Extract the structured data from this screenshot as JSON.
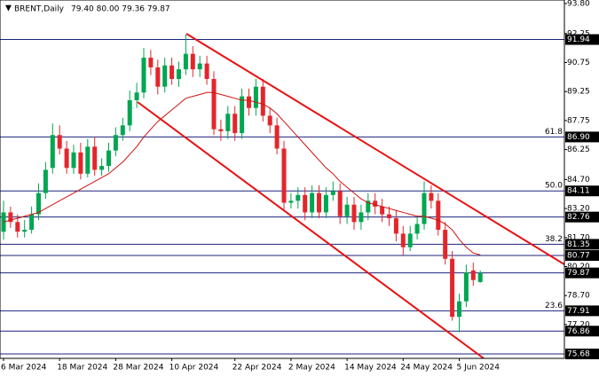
{
  "chart_data": {
    "type": "candlestick",
    "title": "BRENT,Daily",
    "subtitle": "79.40 80.00 79.36 79.87",
    "up_color": "#00a651",
    "down_color": "#e3262c",
    "ma_color": "#d01010",
    "level_color": "#1a237e",
    "categories": [
      "6 Mar 2024",
      null,
      null,
      null,
      null,
      null,
      null,
      null,
      "18 Mar 2024",
      null,
      null,
      null,
      null,
      null,
      null,
      null,
      "28 Mar 2024",
      null,
      null,
      null,
      null,
      null,
      null,
      null,
      "10 Apr 2024",
      null,
      null,
      null,
      null,
      null,
      null,
      null,
      null,
      "22 Apr 2024",
      null,
      null,
      null,
      null,
      null,
      null,
      null,
      "2 May 2024",
      null,
      null,
      null,
      null,
      null,
      null,
      null,
      "14 May 2024",
      null,
      null,
      null,
      null,
      null,
      null,
      null,
      "24 May 2024",
      null,
      null,
      null,
      null,
      null,
      null,
      null,
      "5 Jun 2024",
      null,
      null,
      null
    ],
    "open": [
      82.0,
      83.0,
      82.5,
      82.0,
      82.1,
      82.9,
      84.0,
      85.3,
      87.0,
      86.3,
      85.3,
      86.1,
      85.0,
      86.4,
      85.2,
      85.4,
      86.2,
      87.0,
      87.5,
      88.8,
      89.2,
      91.0,
      90.5,
      89.5,
      90.6,
      89.9,
      90.4,
      91.2,
      90.4,
      90.7,
      89.9,
      87.3,
      87.2,
      88.1,
      87.1,
      89.0,
      88.4,
      89.5,
      88.0,
      87.5,
      86.3,
      83.5,
      83.6,
      83.9,
      83.0,
      84.0,
      83.0,
      83.9,
      84.1,
      82.8,
      83.4,
      82.5,
      83.0,
      83.6,
      83.3,
      82.9,
      82.7,
      81.9,
      81.2,
      81.9,
      82.4,
      84.0,
      83.6,
      82.1,
      80.6,
      77.6,
      78.4,
      80.0,
      79.4
    ],
    "high": [
      83.6,
      83.3,
      82.9,
      82.6,
      83.3,
      84.5,
      85.6,
      87.6,
      87.5,
      86.7,
      86.5,
      86.6,
      86.8,
      86.9,
      85.8,
      86.6,
      87.4,
      87.9,
      89.3,
      89.7,
      91.5,
      91.4,
      90.9,
      91.0,
      91.0,
      90.8,
      92.2,
      91.6,
      91.1,
      91.1,
      90.3,
      87.8,
      88.5,
      88.5,
      89.4,
      89.4,
      89.9,
      89.9,
      88.4,
      87.9,
      86.7,
      84.0,
      84.3,
      84.3,
      84.4,
      84.4,
      84.3,
      84.6,
      84.5,
      83.8,
      83.8,
      83.4,
      84.0,
      84.0,
      83.7,
      83.3,
      83.1,
      82.3,
      82.3,
      82.8,
      84.6,
      84.4,
      84.0,
      82.5,
      81.0,
      78.8,
      80.3,
      80.4,
      80.0
    ],
    "low": [
      81.6,
      82.2,
      81.7,
      81.7,
      81.9,
      82.6,
      83.7,
      85.0,
      86.0,
      85.0,
      85.0,
      84.7,
      84.8,
      84.9,
      84.9,
      85.1,
      85.9,
      86.7,
      87.2,
      88.4,
      88.9,
      90.1,
      89.1,
      89.2,
      89.6,
      89.5,
      90.1,
      90.0,
      90.0,
      89.6,
      87.0,
      86.7,
      86.8,
      86.7,
      86.8,
      88.0,
      88.0,
      87.7,
      87.1,
      86.0,
      83.1,
      83.2,
      83.2,
      82.6,
      82.7,
      82.7,
      82.7,
      83.6,
      82.4,
      82.4,
      82.1,
      82.1,
      82.6,
      82.9,
      82.5,
      82.3,
      81.5,
      80.8,
      81.0,
      81.6,
      82.1,
      83.2,
      81.8,
      80.3,
      77.4,
      76.8,
      78.1,
      79.2,
      79.36
    ],
    "close": [
      83.0,
      82.5,
      82.0,
      82.1,
      82.9,
      84.0,
      85.2,
      87.0,
      86.3,
      85.3,
      86.1,
      85.0,
      86.4,
      85.2,
      85.4,
      86.2,
      87.0,
      87.5,
      88.8,
      89.2,
      91.0,
      90.5,
      89.5,
      90.6,
      89.9,
      90.4,
      91.2,
      90.4,
      90.7,
      89.9,
      87.3,
      87.2,
      88.1,
      87.1,
      89.0,
      88.4,
      89.5,
      88.0,
      87.5,
      86.3,
      83.5,
      83.6,
      83.9,
      83.0,
      84.0,
      83.0,
      83.9,
      84.1,
      82.8,
      83.4,
      82.5,
      83.0,
      83.6,
      83.3,
      82.9,
      82.7,
      81.9,
      81.2,
      81.9,
      82.4,
      84.0,
      83.6,
      82.1,
      80.6,
      77.6,
      78.4,
      79.9,
      79.5,
      79.87
    ],
    "ma": [
      82.5,
      82.6,
      82.7,
      82.8,
      82.9,
      83.0,
      83.2,
      83.4,
      83.6,
      83.8,
      84.0,
      84.2,
      84.4,
      84.6,
      84.8,
      85.0,
      85.3,
      85.6,
      86.0,
      86.4,
      86.9,
      87.3,
      87.7,
      88.0,
      88.3,
      88.6,
      88.9,
      89.0,
      89.1,
      89.2,
      89.2,
      89.1,
      89.0,
      88.9,
      88.8,
      88.8,
      88.7,
      88.6,
      88.4,
      88.1,
      87.7,
      87.3,
      86.9,
      86.5,
      86.1,
      85.7,
      85.3,
      85.0,
      84.6,
      84.3,
      84.0,
      83.7,
      83.5,
      83.4,
      83.3,
      83.2,
      83.1,
      83.0,
      82.9,
      82.8,
      82.8,
      82.7,
      82.6,
      82.4,
      82.1,
      81.6,
      81.2,
      80.9,
      80.8
    ],
    "ylim": [
      75.68,
      93.8
    ],
    "yticks": [
      {
        "value": 93.8,
        "label": "93.80"
      },
      92.25,
      90.75,
      89.25,
      87.75,
      86.25,
      {
        "value": 84.7,
        "label": "84.70"
      },
      {
        "value": 83.2,
        "label": "83.20"
      },
      {
        "value": 81.7,
        "label": "81.70"
      },
      {
        "value": 80.2,
        "label": "80.20"
      },
      {
        "value": 78.7,
        "label": "78.70"
      },
      {
        "value": 77.2,
        "label": "77.20"
      }
    ],
    "levels": [
      {
        "value": 91.94
      },
      {
        "value": 86.9,
        "label": "86.90",
        "fib": "61.8"
      },
      {
        "value": 84.11,
        "fib": "50.0"
      },
      {
        "value": 82.76
      },
      {
        "value": 81.35,
        "fib": "38.2"
      },
      {
        "value": 80.77
      },
      {
        "value": 79.87
      },
      {
        "value": 77.91,
        "fib": "23.6"
      },
      {
        "value": 76.86
      },
      {
        "value": 75.68
      }
    ]
  }
}
